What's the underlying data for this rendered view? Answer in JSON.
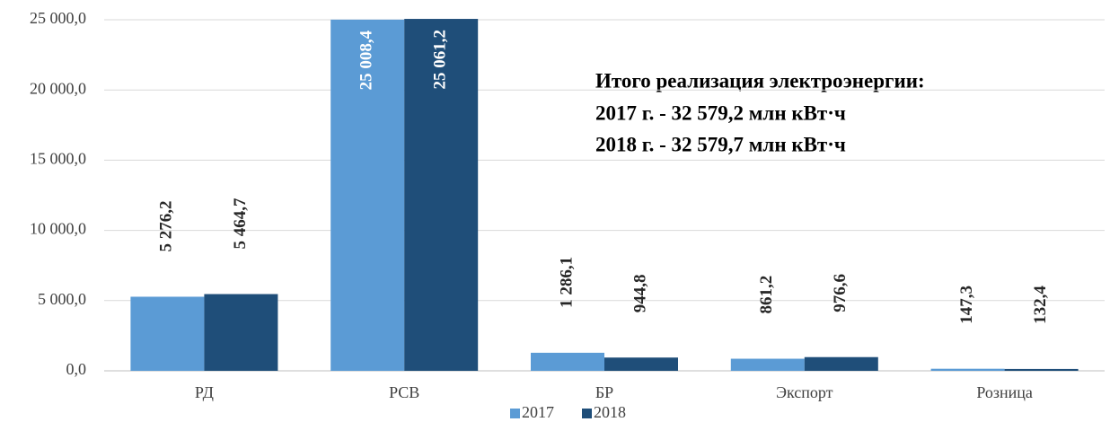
{
  "chart_data": {
    "type": "bar",
    "categories": [
      "РД",
      "РСВ",
      "БР",
      "Экспорт",
      "Розница"
    ],
    "series": [
      {
        "name": "2017",
        "color": "#5b9bd5",
        "values": [
          5276.2,
          25008.4,
          1286.1,
          861.2,
          147.3
        ],
        "value_labels": [
          "5 276,2",
          "25 008,4",
          "1 286,1",
          "861,2",
          "147,3"
        ]
      },
      {
        "name": "2018",
        "color": "#1f4e79",
        "values": [
          5464.7,
          25061.2,
          944.8,
          976.6,
          132.4
        ],
        "value_labels": [
          "5 464,7",
          "25 061,2",
          "944,8",
          "976,6",
          "132,4"
        ]
      }
    ],
    "ylim": [
      0,
      25000
    ],
    "yticks": [
      {
        "value": 0,
        "label": "0,0"
      },
      {
        "value": 5000,
        "label": "5 000,0"
      },
      {
        "value": 10000,
        "label": "10 000,0"
      },
      {
        "value": 15000,
        "label": "15 000,0"
      },
      {
        "value": 20000,
        "label": "20 000,0"
      },
      {
        "value": 25000,
        "label": "25 000,0"
      }
    ],
    "grid": true,
    "legend": "bottom",
    "annotations": [
      "Итого реализация электроэнергии:",
      "2017 г. - 32 579,2 млн кВт·ч",
      "2018 г. - 32 579,7 млн кВт·ч"
    ]
  }
}
